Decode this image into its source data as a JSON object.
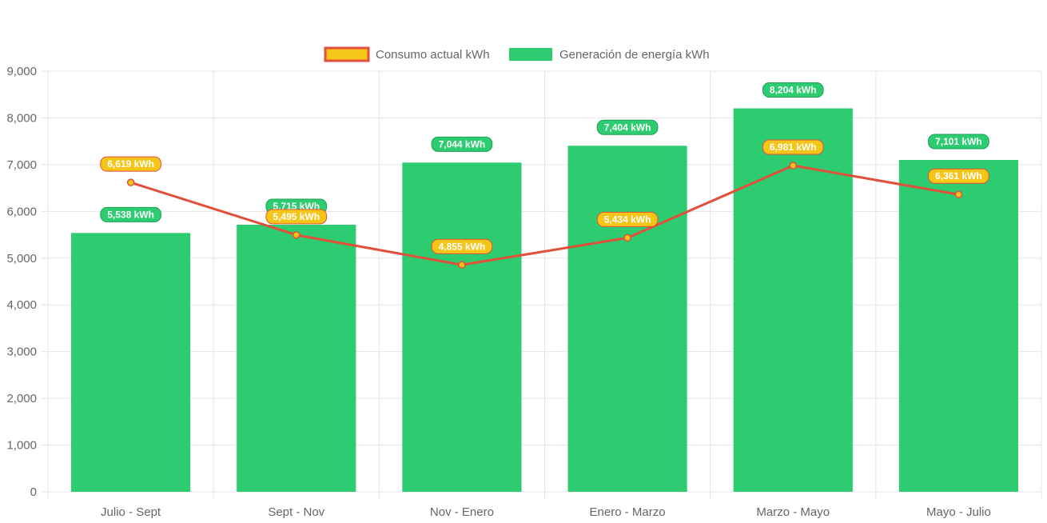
{
  "chart_data": {
    "type": "bar",
    "categories": [
      "Julio - Sept",
      "Sept - Nov",
      "Nov - Enero",
      "Enero - Marzo",
      "Marzo - Mayo",
      "Mayo - Julio"
    ],
    "series": [
      {
        "name": "Consumo actual kWh",
        "type": "line",
        "values": [
          6619,
          5495,
          4855,
          5434,
          6981,
          6361
        ],
        "labels": [
          "6,619 kWh",
          "5,495 kWh",
          "4,855 kWh",
          "5,434 kWh",
          "6,981 kWh",
          "6,361 kWh"
        ],
        "color": "#e0503a",
        "fill_color": "#f5c518"
      },
      {
        "name": "Generación de energía kWh",
        "type": "bar",
        "values": [
          5538,
          5715,
          7044,
          7404,
          8204,
          7101
        ],
        "labels": [
          "5,538 kWh",
          "5,715 kWh",
          "7,044 kWh",
          "7,404 kWh",
          "8,204 kWh",
          "7,101 kWh"
        ],
        "color": "#2ecc71"
      }
    ],
    "ylim": [
      0,
      9000
    ],
    "yticks": [
      0,
      1000,
      2000,
      3000,
      4000,
      5000,
      6000,
      7000,
      8000,
      9000
    ],
    "ytick_labels": [
      "0",
      "1,000",
      "2,000",
      "3,000",
      "4,000",
      "5,000",
      "6,000",
      "7,000",
      "8,000",
      "9,000"
    ],
    "xlabel": "",
    "ylabel": "",
    "grid": true,
    "legend_position": "top"
  }
}
